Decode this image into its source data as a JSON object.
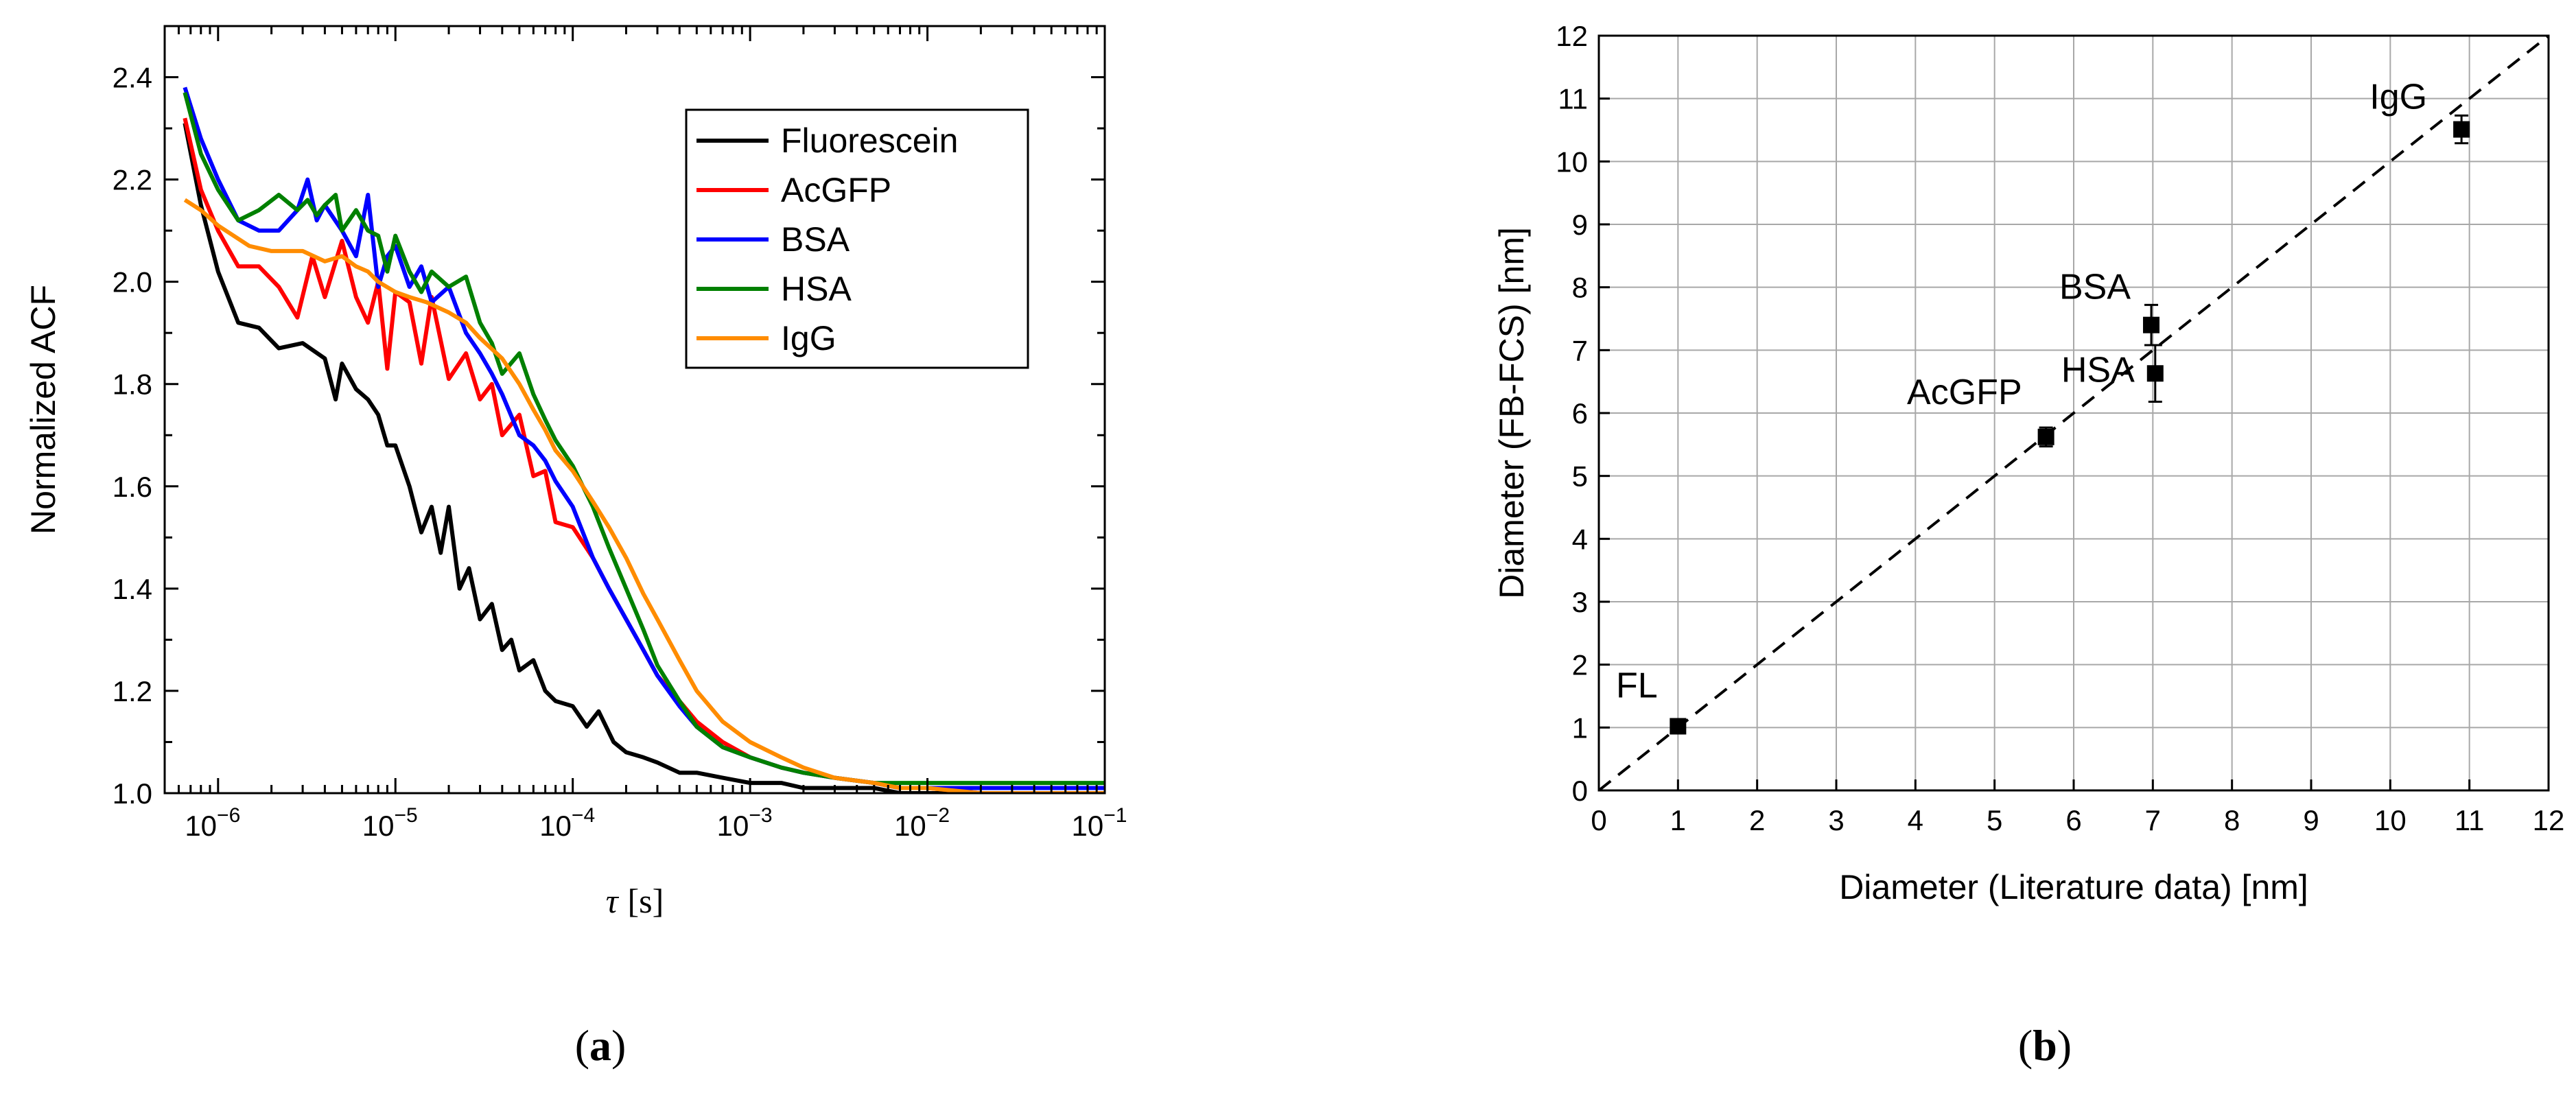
{
  "chart_data": [
    {
      "type": "line",
      "panel": "(a)",
      "panel_letter": "a",
      "xlabel_symbol": "τ",
      "xlabel_unit": "[s]",
      "ylabel": "Normalized ACF",
      "xscale": "log",
      "xlim": [
        5e-07,
        0.1
      ],
      "ylim": [
        1.0,
        2.5
      ],
      "xticks": [
        {
          "value": 1e-06,
          "mantissa": "10",
          "exp": "−6"
        },
        {
          "value": 1e-05,
          "mantissa": "10",
          "exp": "−5"
        },
        {
          "value": 0.0001,
          "mantissa": "10",
          "exp": "−4"
        },
        {
          "value": 0.001,
          "mantissa": "10",
          "exp": "−3"
        },
        {
          "value": 0.01,
          "mantissa": "10",
          "exp": "−2"
        },
        {
          "value": 0.1,
          "mantissa": "10",
          "exp": "−1"
        }
      ],
      "yticks": [
        "1.0",
        "1.2",
        "1.4",
        "1.6",
        "1.8",
        "2.0",
        "2.2",
        "2.4"
      ],
      "legend_position": "top-right",
      "series": [
        {
          "name": "Fluorescein",
          "color": "#000000",
          "x": [
            6.5e-07,
            8e-07,
            1e-06,
            1.3e-06,
            1.7e-06,
            2.2e-06,
            3e-06,
            4e-06,
            4.6e-06,
            5e-06,
            6e-06,
            7e-06,
            8e-06,
            9e-06,
            1e-05,
            1.2e-05,
            1.4e-05,
            1.6e-05,
            1.8e-05,
            2e-05,
            2.3e-05,
            2.6e-05,
            3e-05,
            3.5e-05,
            4e-05,
            4.5e-05,
            5e-05,
            6e-05,
            7e-05,
            8e-05,
            0.0001,
            0.00012,
            0.00014,
            0.00017,
            0.0002,
            0.00025,
            0.0003,
            0.0004,
            0.0005,
            0.0007,
            0.001,
            0.0015,
            0.002,
            0.003,
            0.005,
            0.007,
            0.01,
            0.02,
            0.05,
            0.1
          ],
          "y": [
            2.31,
            2.15,
            2.02,
            1.92,
            1.91,
            1.87,
            1.88,
            1.85,
            1.77,
            1.84,
            1.79,
            1.77,
            1.74,
            1.68,
            1.68,
            1.6,
            1.51,
            1.56,
            1.47,
            1.56,
            1.4,
            1.44,
            1.34,
            1.37,
            1.28,
            1.3,
            1.24,
            1.26,
            1.2,
            1.18,
            1.17,
            1.13,
            1.16,
            1.1,
            1.08,
            1.07,
            1.06,
            1.04,
            1.04,
            1.03,
            1.02,
            1.02,
            1.01,
            1.01,
            1.01,
            1.0,
            1.0,
            1.0,
            1.0,
            1.0
          ]
        },
        {
          "name": "AcGFP",
          "color": "#ff0000",
          "x": [
            6.5e-07,
            8e-07,
            1e-06,
            1.3e-06,
            1.7e-06,
            2.2e-06,
            2.8e-06,
            3.4e-06,
            4e-06,
            5e-06,
            6e-06,
            7e-06,
            8e-06,
            9e-06,
            1e-05,
            1.2e-05,
            1.4e-05,
            1.6e-05,
            2e-05,
            2.5e-05,
            3e-05,
            3.5e-05,
            4e-05,
            5e-05,
            6e-05,
            7e-05,
            8e-05,
            0.0001,
            0.00013,
            0.00016,
            0.0002,
            0.00025,
            0.0003,
            0.0004,
            0.0005,
            0.0007,
            0.001,
            0.0015,
            0.002,
            0.003,
            0.005,
            0.007,
            0.01,
            0.02,
            0.05,
            0.1
          ],
          "y": [
            2.32,
            2.18,
            2.1,
            2.03,
            2.03,
            1.99,
            1.93,
            2.05,
            1.97,
            2.08,
            1.97,
            1.92,
            2.0,
            1.83,
            1.98,
            1.96,
            1.84,
            1.97,
            1.81,
            1.86,
            1.77,
            1.8,
            1.7,
            1.74,
            1.62,
            1.63,
            1.53,
            1.52,
            1.46,
            1.4,
            1.34,
            1.28,
            1.23,
            1.18,
            1.14,
            1.1,
            1.07,
            1.05,
            1.04,
            1.03,
            1.02,
            1.01,
            1.01,
            1.0,
            1.0,
            1.0
          ]
        },
        {
          "name": "BSA",
          "color": "#0000ff",
          "x": [
            6.5e-07,
            8e-07,
            1e-06,
            1.3e-06,
            1.7e-06,
            2.2e-06,
            2.8e-06,
            3.2e-06,
            3.6e-06,
            4e-06,
            5e-06,
            6e-06,
            7e-06,
            8e-06,
            9e-06,
            1e-05,
            1.2e-05,
            1.4e-05,
            1.6e-05,
            2e-05,
            2.5e-05,
            3e-05,
            3.5e-05,
            4e-05,
            5e-05,
            6e-05,
            7e-05,
            8e-05,
            0.0001,
            0.00013,
            0.00016,
            0.0002,
            0.00025,
            0.0003,
            0.0004,
            0.0005,
            0.0007,
            0.001,
            0.0015,
            0.002,
            0.003,
            0.005,
            0.007,
            0.01,
            0.02,
            0.05,
            0.1
          ],
          "y": [
            2.38,
            2.28,
            2.2,
            2.12,
            2.1,
            2.1,
            2.14,
            2.2,
            2.12,
            2.15,
            2.1,
            2.05,
            2.17,
            1.99,
            2.05,
            2.07,
            1.99,
            2.03,
            1.96,
            1.99,
            1.9,
            1.86,
            1.82,
            1.78,
            1.7,
            1.68,
            1.65,
            1.61,
            1.56,
            1.46,
            1.4,
            1.34,
            1.28,
            1.23,
            1.17,
            1.13,
            1.09,
            1.07,
            1.05,
            1.04,
            1.03,
            1.02,
            1.01,
            1.01,
            1.01,
            1.01,
            1.01
          ]
        },
        {
          "name": "HSA",
          "color": "#008000",
          "x": [
            6.5e-07,
            8e-07,
            1e-06,
            1.3e-06,
            1.7e-06,
            2.2e-06,
            2.8e-06,
            3.2e-06,
            3.6e-06,
            4e-06,
            4.6e-06,
            5e-06,
            6e-06,
            7e-06,
            8e-06,
            9e-06,
            1e-05,
            1.2e-05,
            1.4e-05,
            1.6e-05,
            2e-05,
            2.5e-05,
            3e-05,
            3.5e-05,
            4e-05,
            5e-05,
            6e-05,
            7e-05,
            8e-05,
            0.0001,
            0.00013,
            0.00016,
            0.0002,
            0.00025,
            0.0003,
            0.0004,
            0.0005,
            0.0007,
            0.001,
            0.0015,
            0.002,
            0.003,
            0.005,
            0.007,
            0.01,
            0.02,
            0.05,
            0.1
          ],
          "y": [
            2.37,
            2.25,
            2.18,
            2.12,
            2.14,
            2.17,
            2.14,
            2.16,
            2.13,
            2.15,
            2.17,
            2.1,
            2.14,
            2.1,
            2.09,
            2.02,
            2.09,
            2.02,
            1.98,
            2.02,
            1.99,
            2.01,
            1.92,
            1.88,
            1.82,
            1.86,
            1.78,
            1.73,
            1.69,
            1.64,
            1.56,
            1.48,
            1.4,
            1.32,
            1.25,
            1.18,
            1.13,
            1.09,
            1.07,
            1.05,
            1.04,
            1.03,
            1.02,
            1.02,
            1.02,
            1.02,
            1.02,
            1.02
          ]
        },
        {
          "name": "IgG",
          "color": "#ff8c00",
          "x": [
            6.5e-07,
            8e-07,
            1e-06,
            1.5e-06,
            2e-06,
            3e-06,
            4e-06,
            5e-06,
            6e-06,
            7e-06,
            8e-06,
            1e-05,
            1.2e-05,
            1.5e-05,
            2e-05,
            2.5e-05,
            3e-05,
            4e-05,
            5e-05,
            6e-05,
            7e-05,
            8e-05,
            0.0001,
            0.00013,
            0.00016,
            0.0002,
            0.00025,
            0.0003,
            0.0004,
            0.0005,
            0.0007,
            0.001,
            0.0015,
            0.002,
            0.003,
            0.005,
            0.007,
            0.01,
            0.02,
            0.05,
            0.1
          ],
          "y": [
            2.16,
            2.14,
            2.11,
            2.07,
            2.06,
            2.06,
            2.04,
            2.05,
            2.03,
            2.02,
            2.0,
            1.98,
            1.97,
            1.96,
            1.94,
            1.92,
            1.89,
            1.85,
            1.8,
            1.75,
            1.71,
            1.67,
            1.63,
            1.57,
            1.52,
            1.46,
            1.39,
            1.34,
            1.26,
            1.2,
            1.14,
            1.1,
            1.07,
            1.05,
            1.03,
            1.02,
            1.01,
            1.01,
            1.0,
            1.0,
            1.0
          ]
        }
      ]
    },
    {
      "type": "scatter",
      "panel": "(b)",
      "panel_letter": "b",
      "xlabel": "Diameter (Literature data) [nm]",
      "ylabel": "Diameter (FB-FCS) [nm]",
      "xlim": [
        0,
        12
      ],
      "ylim": [
        0,
        12
      ],
      "grid": true,
      "xticks": [
        "0",
        "1",
        "2",
        "3",
        "4",
        "5",
        "6",
        "7",
        "8",
        "9",
        "10",
        "11",
        "12"
      ],
      "yticks": [
        "0",
        "1",
        "2",
        "3",
        "4",
        "5",
        "6",
        "7",
        "8",
        "9",
        "10",
        "11",
        "12"
      ],
      "reference_line": "y = x (dashed)",
      "points": [
        {
          "label": "FL",
          "x": 1.0,
          "y": 1.02,
          "err": 0.05
        },
        {
          "label": "AcGFP",
          "x": 5.65,
          "y": 5.62,
          "err": 0.15
        },
        {
          "label": "BSA",
          "x": 6.98,
          "y": 7.4,
          "err": 0.32
        },
        {
          "label": "HSA",
          "x": 7.03,
          "y": 6.63,
          "err": 0.45
        },
        {
          "label": "IgG",
          "x": 10.9,
          "y": 10.51,
          "err": 0.22
        }
      ]
    }
  ]
}
